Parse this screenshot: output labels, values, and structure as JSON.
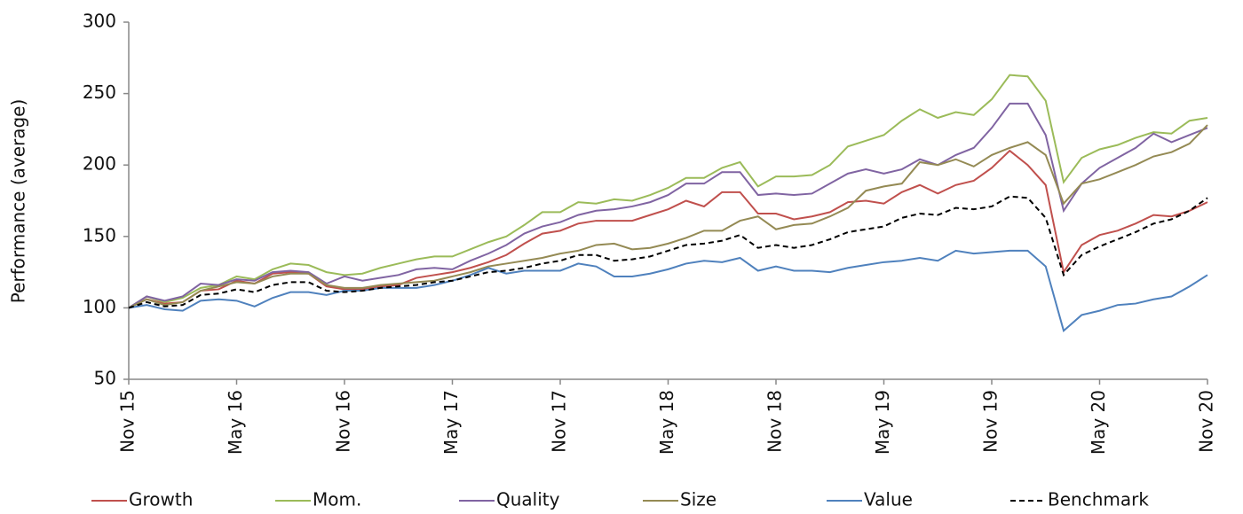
{
  "chart_data": {
    "type": "line",
    "y_label": "Performance (average)",
    "categories": [
      "Nov 15",
      null,
      null,
      null,
      null,
      null,
      "May 16",
      null,
      null,
      null,
      null,
      null,
      "Nov 16",
      null,
      null,
      null,
      null,
      null,
      "May 17",
      null,
      null,
      null,
      null,
      null,
      "Nov 17",
      null,
      null,
      null,
      null,
      null,
      "May 18",
      null,
      null,
      null,
      null,
      null,
      "Nov 18",
      null,
      null,
      null,
      null,
      null,
      "May 19",
      null,
      null,
      null,
      null,
      null,
      "Nov 19",
      null,
      null,
      null,
      null,
      null,
      "May 20",
      null,
      null,
      null,
      null,
      null,
      "Nov 20"
    ],
    "ylim": [
      50,
      300
    ],
    "yticks": [
      50,
      100,
      150,
      200,
      250,
      300
    ],
    "legend": "bottom",
    "series": [
      {
        "name": "Growth",
        "color": "#c0504d",
        "style": "solid",
        "values": [
          100,
          106,
          103,
          104,
          112,
          113,
          119,
          117,
          124,
          125,
          124,
          115,
          113,
          113,
          115,
          116,
          121,
          123,
          125,
          128,
          132,
          137,
          145,
          152,
          154,
          159,
          161,
          161,
          161,
          165,
          169,
          175,
          171,
          181,
          181,
          166,
          166,
          162,
          164,
          167,
          174,
          175,
          173,
          181,
          186,
          180,
          186,
          189,
          198,
          210,
          200,
          186,
          125,
          144,
          151,
          154,
          159,
          165,
          164,
          168,
          174
        ]
      },
      {
        "name": "Mom.",
        "color": "#9bbb59",
        "style": "solid",
        "values": [
          100,
          108,
          104,
          107,
          114,
          116,
          122,
          120,
          127,
          131,
          130,
          125,
          123,
          124,
          128,
          131,
          134,
          136,
          136,
          141,
          146,
          150,
          158,
          167,
          167,
          174,
          173,
          176,
          175,
          179,
          184,
          191,
          191,
          198,
          202,
          185,
          192,
          192,
          193,
          200,
          213,
          217,
          221,
          231,
          239,
          233,
          237,
          235,
          246,
          263,
          262,
          245,
          188,
          205,
          211,
          214,
          219,
          223,
          222,
          231,
          233
        ]
      },
      {
        "name": "Quality",
        "color": "#8064a2",
        "style": "solid",
        "values": [
          100,
          108,
          105,
          108,
          117,
          116,
          120,
          119,
          125,
          126,
          125,
          117,
          122,
          119,
          121,
          123,
          127,
          128,
          127,
          133,
          138,
          144,
          152,
          157,
          160,
          165,
          168,
          169,
          171,
          174,
          179,
          187,
          187,
          195,
          195,
          179,
          180,
          179,
          180,
          187,
          194,
          197,
          194,
          197,
          204,
          200,
          207,
          212,
          226,
          243,
          243,
          221,
          168,
          187,
          198,
          205,
          212,
          222,
          216,
          221,
          226
        ]
      },
      {
        "name": "Size",
        "color": "#948a54",
        "style": "solid",
        "values": [
          100,
          106,
          102,
          104,
          112,
          115,
          118,
          117,
          122,
          124,
          124,
          116,
          114,
          114,
          116,
          117,
          118,
          119,
          122,
          125,
          129,
          131,
          133,
          135,
          138,
          140,
          144,
          145,
          141,
          142,
          145,
          149,
          154,
          154,
          161,
          164,
          155,
          158,
          159,
          164,
          170,
          182,
          185,
          187,
          202,
          200,
          204,
          199,
          207,
          212,
          216,
          207,
          173,
          187,
          190,
          195,
          200,
          206,
          209,
          215,
          228
        ]
      },
      {
        "name": "Value",
        "color": "#4f81bd",
        "style": "solid",
        "values": [
          100,
          102,
          99,
          98,
          105,
          106,
          105,
          101,
          107,
          111,
          111,
          109,
          112,
          112,
          114,
          114,
          114,
          116,
          119,
          123,
          128,
          124,
          126,
          126,
          126,
          131,
          129,
          122,
          122,
          124,
          127,
          131,
          133,
          132,
          135,
          126,
          129,
          126,
          126,
          125,
          128,
          130,
          132,
          133,
          135,
          133,
          140,
          138,
          139,
          140,
          140,
          129,
          84,
          95,
          98,
          102,
          103,
          106,
          108,
          115,
          123
        ]
      },
      {
        "name": "Benchmark",
        "color": "#000000",
        "style": "dashed",
        "values": [
          100,
          104,
          101,
          102,
          109,
          110,
          113,
          111,
          116,
          118,
          118,
          112,
          111,
          112,
          114,
          115,
          116,
          118,
          119,
          122,
          125,
          126,
          128,
          131,
          133,
          137,
          137,
          133,
          134,
          136,
          140,
          144,
          145,
          147,
          151,
          142,
          144,
          142,
          144,
          148,
          153,
          155,
          157,
          163,
          166,
          165,
          170,
          169,
          171,
          178,
          177,
          163,
          123,
          137,
          143,
          148,
          153,
          159,
          162,
          168,
          177
        ]
      }
    ]
  }
}
